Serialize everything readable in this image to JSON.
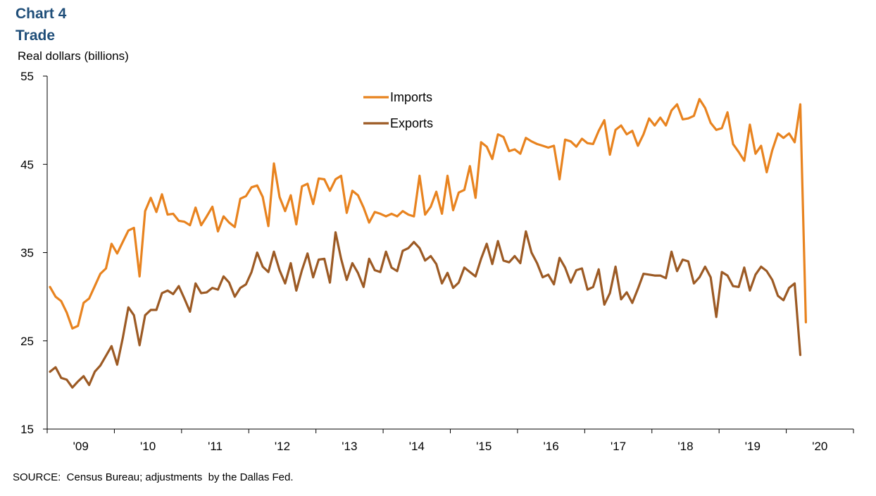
{
  "header": {
    "chart_number": "Chart 4",
    "title": "Trade",
    "unit_label": "Real dollars (billions)"
  },
  "footer": {
    "source": "SOURCE:  Census Bureau; adjustments  by the Dallas Fed."
  },
  "colors": {
    "imports": "#e8831f",
    "exports": "#9c5a24",
    "axis": "#000000",
    "title": "#1f4e79"
  },
  "chart_data": {
    "type": "line",
    "title": "Trade",
    "ylabel": "Real dollars (billions)",
    "xlabel": "",
    "ylim": [
      15,
      55
    ],
    "yticks": [
      15,
      25,
      35,
      45,
      55
    ],
    "x_tick_labels": [
      "'09",
      "'10",
      "'11",
      "'12",
      "'13",
      "'14",
      "'15",
      "'16",
      "'17",
      "'18",
      "'19",
      "'20"
    ],
    "x_start": "2009-01",
    "x_end": "2020-04",
    "legend": {
      "position": "top-center"
    },
    "grid": false,
    "series": [
      {
        "name": "Imports",
        "values": [
          31.1,
          30,
          29.5,
          28.2,
          26.4,
          26.7,
          29.3,
          29.8,
          31.2,
          32.6,
          33.2,
          36,
          34.9,
          36.2,
          37.5,
          37.8,
          32.3,
          39.7,
          41.2,
          39.6,
          41.6,
          39.3,
          39.4,
          38.6,
          38.5,
          38.1,
          40.1,
          38.1,
          39.1,
          40.2,
          37.4,
          39.1,
          38.4,
          37.9,
          41.1,
          41.4,
          42.4,
          42.6,
          41.3,
          38,
          45.1,
          41.3,
          39.7,
          41.5,
          38.2,
          42.5,
          42.8,
          40.5,
          43.4,
          43.3,
          42,
          43.3,
          43.7,
          39.5,
          42,
          41.5,
          40.1,
          38.4,
          39.6,
          39.4,
          39.1,
          39.4,
          39.1,
          39.7,
          39.3,
          39.1,
          43.7,
          39.3,
          40.2,
          41.9,
          39.4,
          43.7,
          39.8,
          41.8,
          42.1,
          44.8,
          41.2,
          47.5,
          47,
          45.6,
          48.4,
          48.1,
          46.5,
          46.7,
          46.2,
          48,
          47.6,
          47.3,
          47.1,
          46.9,
          47.1,
          43.3,
          47.8,
          47.6,
          47,
          47.9,
          47.4,
          47.3,
          48.8,
          50,
          46.1,
          48.9,
          49.4,
          48.4,
          48.8,
          47.1,
          48.4,
          50.2,
          49.4,
          50.3,
          49.4,
          51.1,
          51.8,
          50.1,
          50.2,
          50.5,
          52.4,
          51.4,
          49.7,
          48.9,
          49.1,
          50.9,
          47.3,
          46.4,
          45.4,
          49.5,
          46.2,
          47.1,
          44.1,
          46.6,
          48.5,
          48,
          48.5,
          47.5,
          51.8,
          27.1
        ]
      },
      {
        "name": "Exports",
        "values": [
          21.5,
          22,
          20.8,
          20.6,
          19.7,
          20.4,
          21,
          20,
          21.5,
          22.2,
          23.3,
          24.4,
          22.3,
          25.3,
          28.8,
          27.9,
          24.5,
          27.9,
          28.5,
          28.5,
          30.4,
          30.7,
          30.3,
          31.2,
          29.8,
          28.3,
          31.5,
          30.4,
          30.5,
          31,
          30.8,
          32.3,
          31.6,
          30,
          31,
          31.4,
          32.8,
          35,
          33.4,
          32.8,
          35.1,
          33,
          31.5,
          33.8,
          30.7,
          33,
          34.9,
          32.2,
          34.2,
          34.3,
          31.6,
          37.3,
          34.3,
          31.9,
          33.8,
          32.7,
          31.1,
          34.3,
          33,
          32.8,
          35.1,
          33.3,
          32.9,
          35.2,
          35.5,
          36.2,
          35.5,
          34.1,
          34.6,
          33.7,
          31.5,
          32.7,
          31,
          31.6,
          33.3,
          32.8,
          32.3,
          34.3,
          36,
          33.7,
          36.3,
          34.1,
          33.9,
          34.6,
          33.8,
          37.4,
          35,
          33.8,
          32.2,
          32.5,
          31.4,
          34.4,
          33.3,
          31.6,
          33,
          33.2,
          30.8,
          31.1,
          33.1,
          29.1,
          30.4,
          33.4,
          29.7,
          30.5,
          29.3,
          30.9,
          32.6,
          32.5,
          32.4,
          32.4,
          32.1,
          35.1,
          32.9,
          34.2,
          34,
          31.5,
          32.2,
          33.4,
          32.2,
          27.7,
          32.8,
          32.4,
          31.2,
          31.1,
          33.3,
          30.7,
          32.5,
          33.4,
          32.9,
          31.9,
          30.1,
          29.6,
          31,
          31.5,
          23.4
        ]
      }
    ]
  }
}
